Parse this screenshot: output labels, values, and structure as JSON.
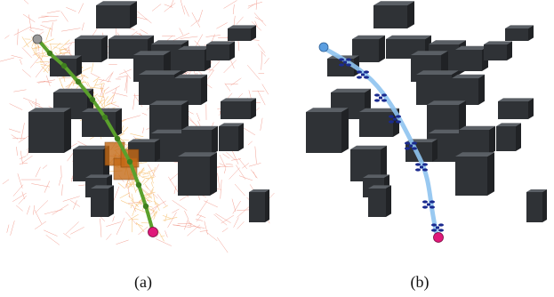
{
  "figure": {
    "panel_a": {
      "caption": "(a)",
      "colors": {
        "obstacle_front": "#2f3236",
        "obstacle_top": "#5a5f65",
        "obstacle_side": "#202225",
        "tree_edges": "#e8533c",
        "tree_dense": "#f3a83a",
        "path": "#5aa02c",
        "path_nodes": "#3f7f1e",
        "highlight_boxes": "#c46a16",
        "start": "#9a9a9a",
        "goal": "#e0197a"
      }
    },
    "panel_b": {
      "caption": "(b)",
      "colors": {
        "obstacle_front": "#2f3236",
        "obstacle_top": "#5a5f65",
        "obstacle_side": "#202225",
        "trajectory": "#8ec3ef",
        "drone": "#1a2a8f",
        "start": "#5b9ee0",
        "goal": "#e0197a"
      }
    }
  }
}
